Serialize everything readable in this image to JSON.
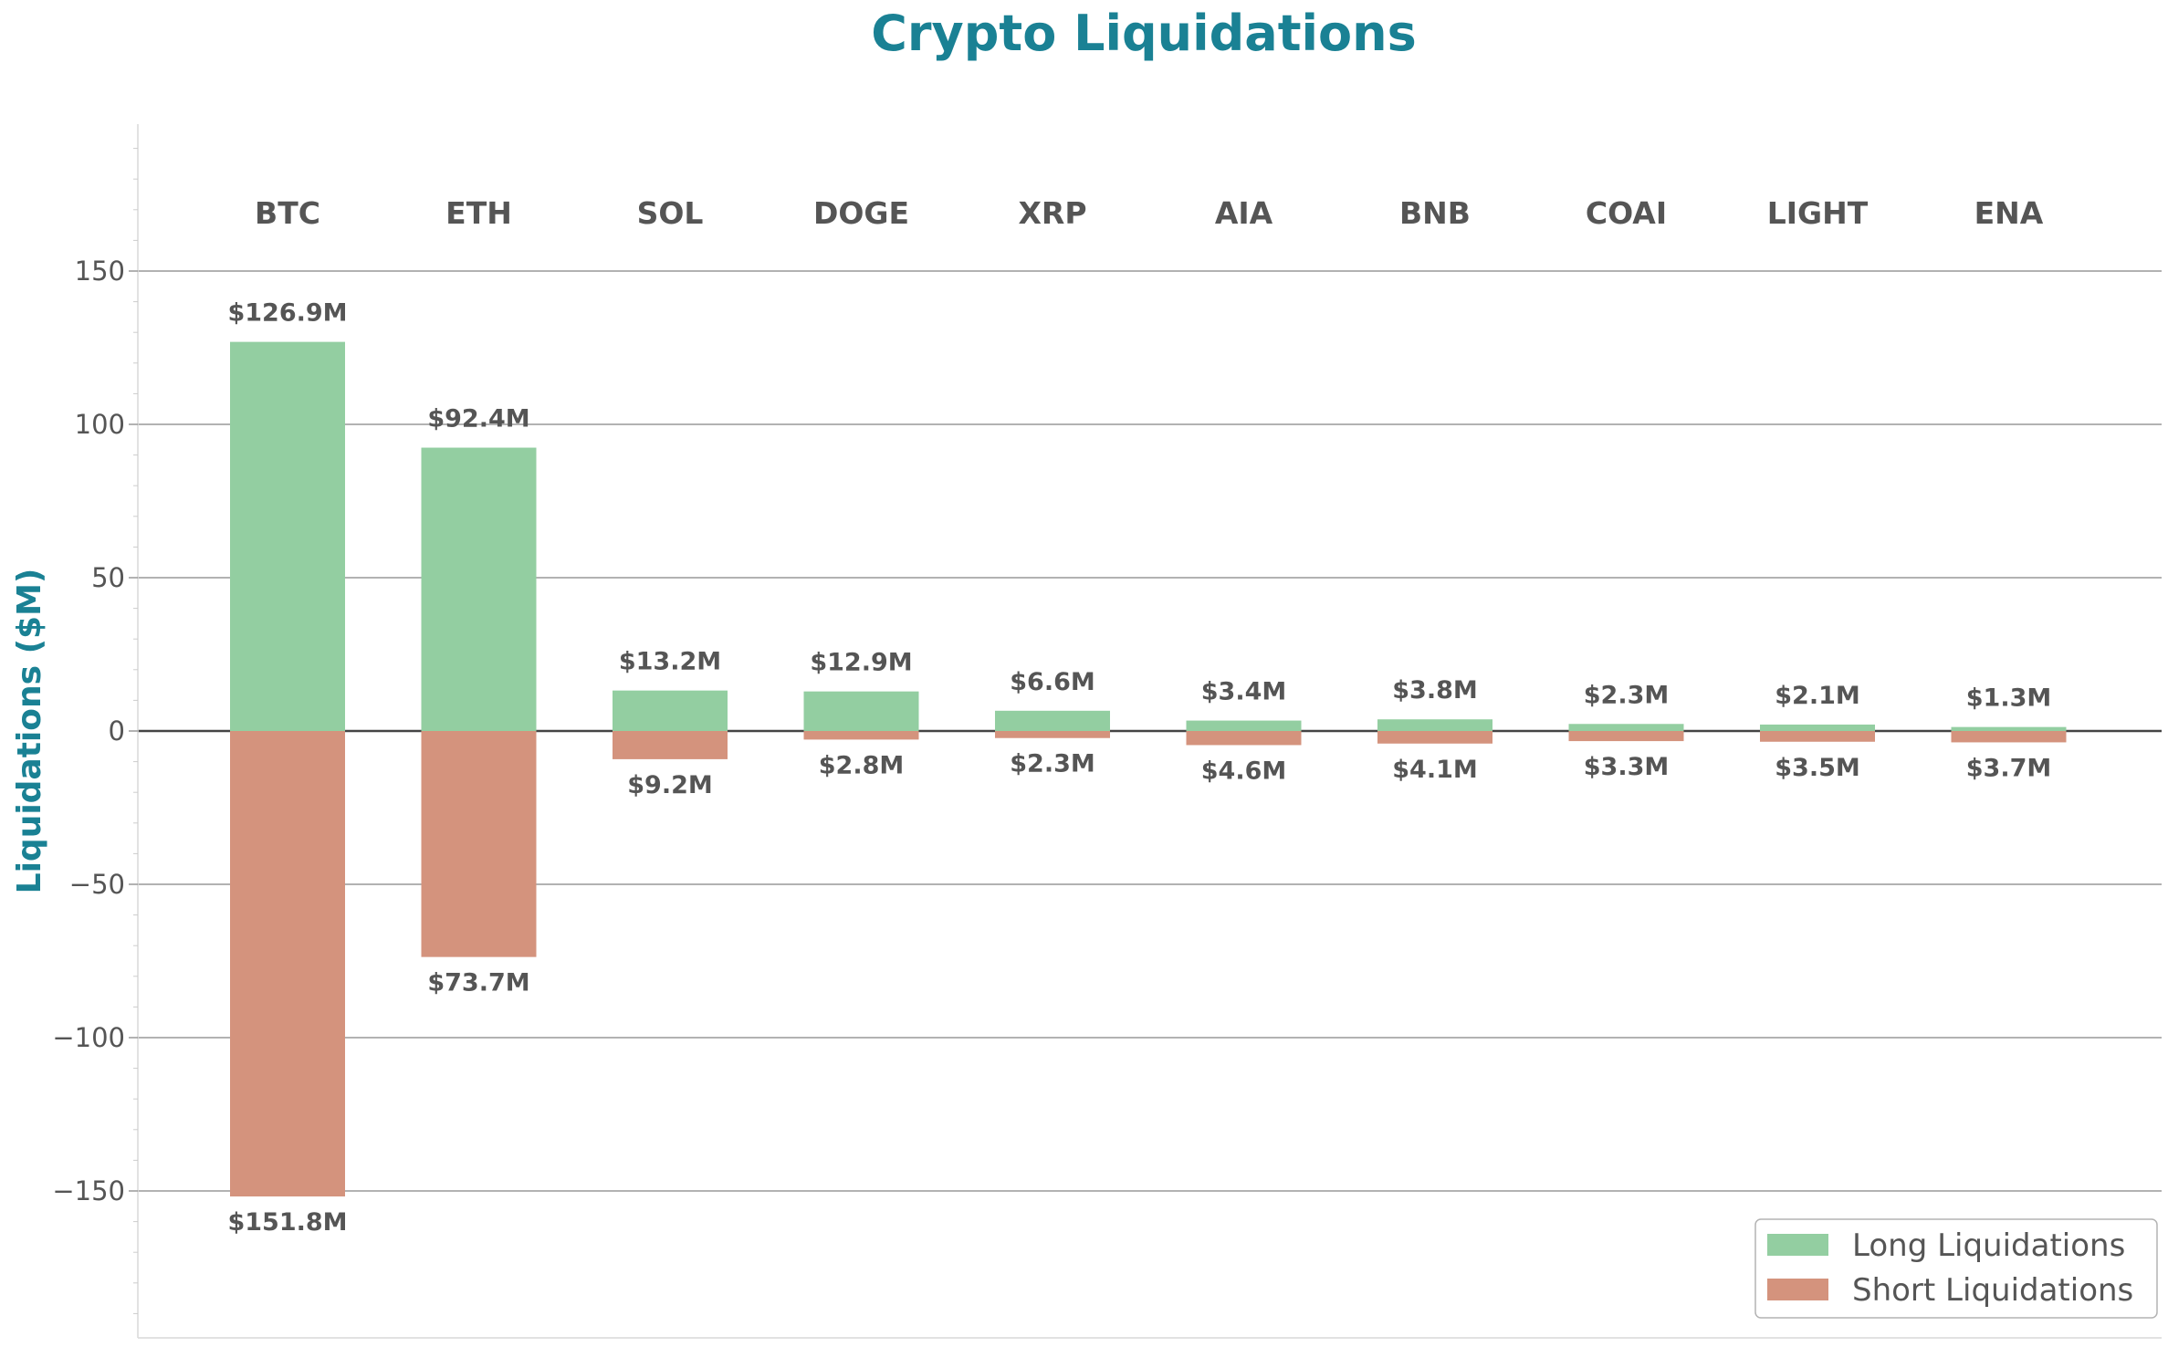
{
  "chart_data": {
    "type": "bar",
    "title": "Crypto Liquidations",
    "ylabel": "Liquidations ($M)",
    "xlabel": "",
    "ylim": [
      -195,
      195
    ],
    "yticks": [
      150,
      100,
      50,
      0,
      -50,
      -100,
      -150
    ],
    "ytick_labels": [
      "150",
      "100",
      "50",
      "0",
      "−50",
      "−100",
      "−150"
    ],
    "categories": [
      "BTC",
      "ETH",
      "SOL",
      "DOGE",
      "XRP",
      "AIA",
      "BNB",
      "COAI",
      "LIGHT",
      "ENA"
    ],
    "series": [
      {
        "name": "Long Liquidations",
        "color": "#93cea1",
        "values": [
          126.9,
          92.4,
          13.2,
          12.9,
          6.6,
          3.4,
          3.8,
          2.3,
          2.1,
          1.3
        ],
        "labels": [
          "$126.9M",
          "$92.4M",
          "$13.2M",
          "$12.9M",
          "$6.6M",
          "$3.4M",
          "$3.8M",
          "$2.3M",
          "$2.1M",
          "$1.3M"
        ]
      },
      {
        "name": "Short Liquidations",
        "color": "#d4937d",
        "values": [
          -151.8,
          -73.7,
          -9.2,
          -2.8,
          -2.3,
          -4.6,
          -4.1,
          -3.3,
          -3.5,
          -3.7
        ],
        "labels": [
          "$151.8M",
          "$73.7M",
          "$9.2M",
          "$2.8M",
          "$2.3M",
          "$4.6M",
          "$4.1M",
          "$3.3M",
          "$3.5M",
          "$3.7M"
        ]
      }
    ],
    "grid": true,
    "legend_position": "bottom-right",
    "colors": {
      "title": "#1a8194",
      "axis_label": "#1a8194",
      "text": "#555555",
      "grid": "#999999",
      "zero_line": "#444444"
    }
  }
}
